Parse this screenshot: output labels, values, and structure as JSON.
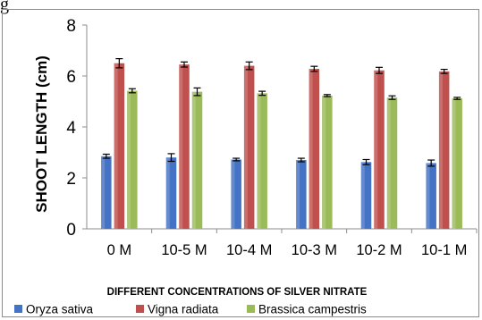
{
  "caption_fragment": "g",
  "chart_data": {
    "type": "bar",
    "title": "",
    "xlabel": "DIFFERENT CONCENTRATIONS OF SILVER NITRATE",
    "ylabel": "SHOOT LENGTH (cm)",
    "ylim": [
      0,
      8
    ],
    "yticks": [
      0,
      2,
      4,
      6,
      8
    ],
    "grid": false,
    "legend_position": "bottom",
    "categories": [
      "0 M",
      "10-5 M",
      "10-4 M",
      "10-3 M",
      "10-2 M",
      "10-1 M"
    ],
    "series": [
      {
        "name": "Oryza sativa",
        "color": "#4472c4",
        "values": [
          2.85,
          2.8,
          2.72,
          2.7,
          2.62,
          2.58
        ],
        "errors": [
          0.08,
          0.15,
          0.05,
          0.07,
          0.1,
          0.12
        ]
      },
      {
        "name": "Vigna radiata",
        "color": "#c0504d",
        "values": [
          6.5,
          6.45,
          6.4,
          6.28,
          6.22,
          6.18
        ],
        "errors": [
          0.18,
          0.1,
          0.15,
          0.1,
          0.12,
          0.08
        ]
      },
      {
        "name": "Brassica campestris",
        "color": "#9bbb59",
        "values": [
          5.42,
          5.38,
          5.32,
          5.23,
          5.15,
          5.12
        ],
        "errors": [
          0.08,
          0.15,
          0.08,
          0.04,
          0.07,
          0.04
        ]
      }
    ]
  }
}
